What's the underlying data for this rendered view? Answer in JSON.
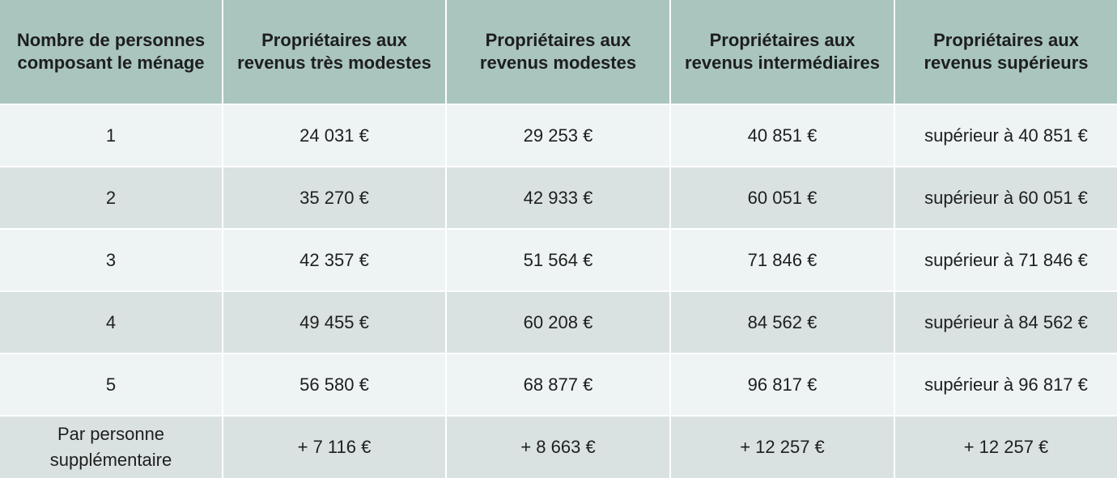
{
  "table": {
    "header": [
      "Nombre de personnes composant le ménage",
      "Propriétaires aux revenus très modestes",
      "Propriétaires aux revenus modestes",
      "Propriétaires aux revenus intermédiaires",
      "Propriétaires aux revenus supérieurs"
    ],
    "rows": [
      [
        "1",
        "24 031 €",
        "29 253 €",
        "40 851 €",
        "supérieur à 40 851 €"
      ],
      [
        "2",
        "35 270 €",
        "42 933 €",
        "60 051 €",
        "supérieur à 60 051 €"
      ],
      [
        "3",
        "42 357 €",
        "51 564 €",
        "71 846 €",
        "supérieur à 71 846 €"
      ],
      [
        "4",
        "49 455 €",
        "60 208 €",
        "84 562 €",
        "supérieur à 84 562 €"
      ],
      [
        "5",
        "56 580 €",
        "68 877 €",
        "96 817 €",
        "supérieur à 96 817 €"
      ],
      [
        "Par personne supplémentaire",
        "+ 7 116 €",
        "+ 8 663 €",
        "+ 12 257 €",
        "+ 12 257 €"
      ]
    ]
  }
}
